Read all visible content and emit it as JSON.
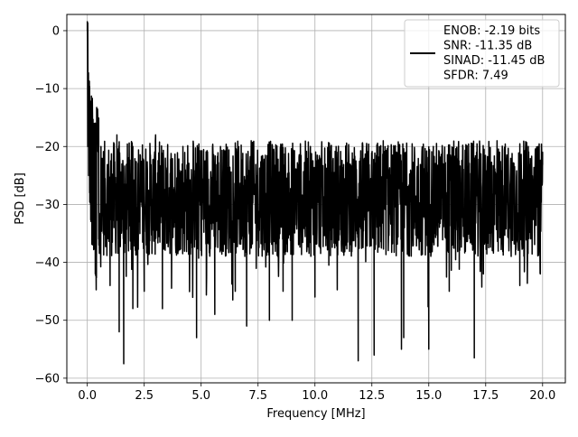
{
  "chart_data": {
    "type": "line",
    "xlabel": "Frequency [MHz]",
    "ylabel": "PSD [dB]",
    "xlim": [
      -0.9,
      21.0
    ],
    "ylim": [
      -60.8,
      2.8
    ],
    "xticks": [
      0.0,
      2.5,
      5.0,
      7.5,
      10.0,
      12.5,
      15.0,
      17.5,
      20.0
    ],
    "xtick_labels": [
      "0.0",
      "2.5",
      "5.0",
      "7.5",
      "10.0",
      "12.5",
      "15.0",
      "17.5",
      "20.0"
    ],
    "yticks": [
      0,
      -10,
      -20,
      -30,
      -40,
      -50,
      -60
    ],
    "ytick_labels": [
      "0",
      "−10",
      "−20",
      "−30",
      "−40",
      "−50",
      "−60"
    ],
    "grid": true,
    "legend_position": "top-right",
    "legend_lines": [
      "ENOB: -2.19 bits",
      "SNR: -11.35 dB",
      "SINAD: -11.45 dB",
      "SFDR: 7.49"
    ],
    "line_color": "#000000",
    "series": [
      {
        "x": [
          0.0,
          0.02,
          0.04,
          0.06,
          0.08,
          0.1,
          0.12,
          0.14,
          0.16,
          0.18,
          0.2,
          0.25,
          0.3,
          0.35,
          0.4,
          0.5,
          0.6,
          1.0,
          1.3,
          1.4,
          1.6,
          2.0,
          2.5,
          3.0,
          3.3,
          4.2,
          4.8,
          5.0,
          5.6,
          6.0,
          6.5,
          7.0,
          7.2,
          8.0,
          8.2,
          8.6,
          9.0,
          9.8,
          10.0,
          11.0,
          11.9,
          12.0,
          12.6,
          13.0,
          13.8,
          13.9,
          14.0,
          15.0,
          15.2,
          15.9,
          16.0,
          17.0,
          17.1,
          17.4,
          18.0,
          19.0,
          19.8,
          19.9,
          20.0
        ],
        "y": [
          0,
          -20,
          -9,
          -25,
          -12,
          -28,
          -13,
          -30,
          -15,
          -33,
          -14,
          -37,
          -16,
          -42,
          -17,
          -36,
          -20,
          -44,
          -18,
          -52,
          -57.5,
          -20,
          -45,
          -18,
          -48,
          -20,
          -53,
          -22,
          -49,
          -21,
          -45,
          -51,
          -19,
          -50,
          -21,
          -45,
          -50,
          -20,
          -46,
          -21,
          -57,
          -22,
          -56,
          -19,
          -55,
          -53,
          -21,
          -55,
          -20,
          -45,
          -22,
          -56.5,
          -21,
          -42,
          -19,
          -44,
          -20,
          -42,
          -21
        ]
      }
    ]
  }
}
